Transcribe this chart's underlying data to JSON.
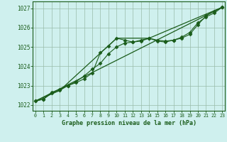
{
  "background_color": "#cff0ee",
  "grid_color": "#99bbaa",
  "line_color": "#1a5c1a",
  "marker_color": "#1a5c1a",
  "title": "Graphe pression niveau de la mer (hPa)",
  "ylabel_ticks": [
    1022,
    1023,
    1024,
    1025,
    1026,
    1027
  ],
  "xticks": [
    0,
    1,
    2,
    3,
    4,
    5,
    6,
    7,
    8,
    9,
    10,
    11,
    12,
    13,
    14,
    15,
    16,
    17,
    18,
    19,
    20,
    21,
    22,
    23
  ],
  "xlim": [
    -0.3,
    23.3
  ],
  "ylim": [
    1021.7,
    1027.35
  ],
  "series1_x": [
    0,
    1,
    2,
    3,
    4,
    5,
    6,
    7,
    8,
    9,
    10,
    11,
    12,
    13,
    14,
    15,
    16,
    17,
    18,
    19,
    20,
    21,
    22,
    23
  ],
  "series1_y": [
    1022.2,
    1022.3,
    1022.6,
    1022.75,
    1023.0,
    1023.15,
    1023.35,
    1023.65,
    1024.7,
    1025.05,
    1025.45,
    1025.35,
    1025.25,
    1025.3,
    1025.45,
    1025.35,
    1025.3,
    1025.35,
    1025.5,
    1025.75,
    1026.25,
    1026.55,
    1026.75,
    1027.05
  ],
  "series2_x": [
    0,
    1,
    2,
    3,
    4,
    5,
    6,
    7,
    8,
    9,
    10,
    11,
    12,
    13,
    14,
    15,
    16,
    17,
    18,
    19,
    20,
    21,
    22,
    23
  ],
  "series2_y": [
    1022.2,
    1022.3,
    1022.65,
    1022.8,
    1023.0,
    1023.2,
    1023.5,
    1023.85,
    1024.15,
    1024.65,
    1025.0,
    1025.2,
    1025.25,
    1025.35,
    1025.45,
    1025.3,
    1025.25,
    1025.35,
    1025.45,
    1025.65,
    1026.15,
    1026.6,
    1026.85,
    1027.05
  ],
  "series3_x": [
    0,
    3,
    10,
    14,
    23
  ],
  "series3_y": [
    1022.2,
    1022.75,
    1025.45,
    1025.45,
    1027.05
  ],
  "series4_x": [
    0,
    23
  ],
  "series4_y": [
    1022.2,
    1027.05
  ]
}
